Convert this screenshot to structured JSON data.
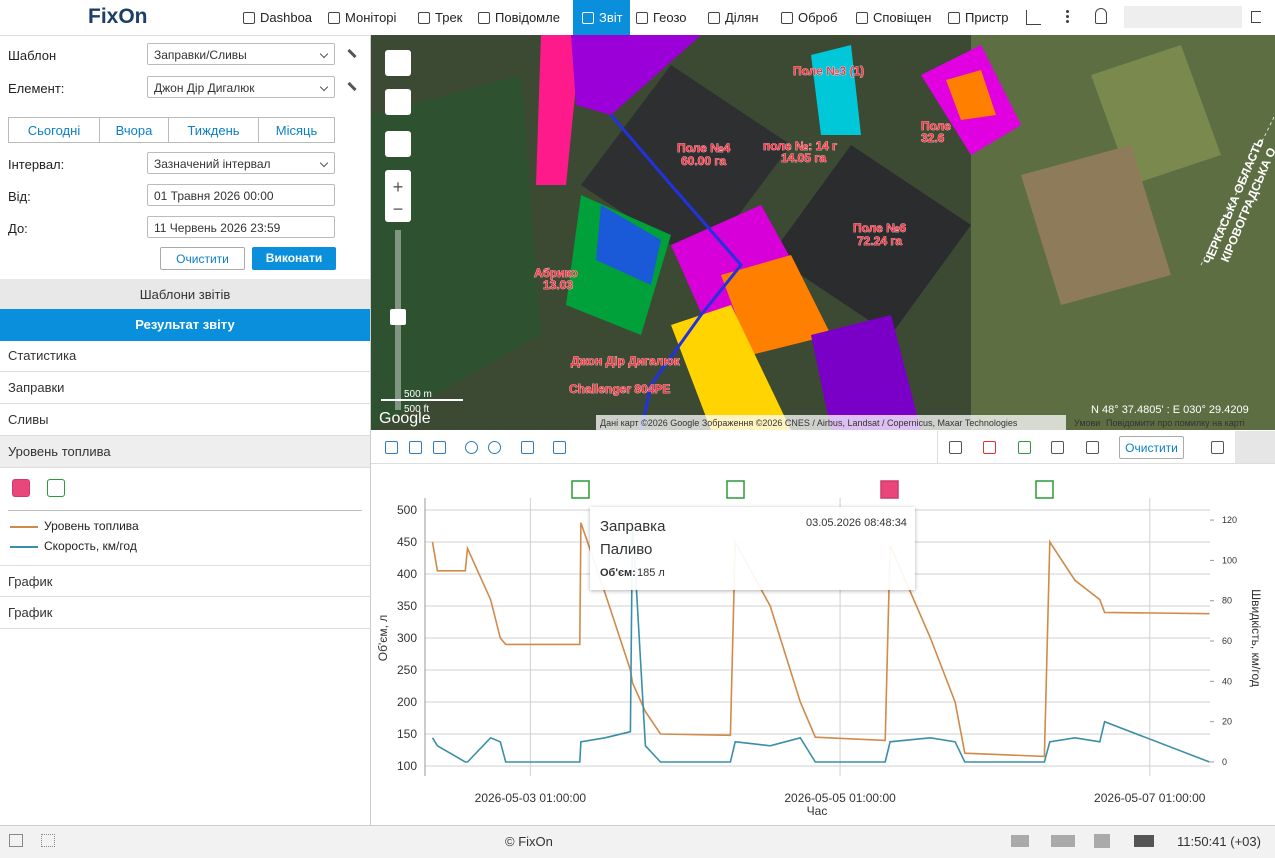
{
  "nav": {
    "logo": "FixOn",
    "tabs": [
      "Dashboa",
      "Моніторі",
      "Трек",
      "Повідомле",
      "Звіт",
      "Геозо",
      "Ділян",
      "Оброб",
      "Сповіщен",
      "Пристр"
    ]
  },
  "sidebar": {
    "template_label": "Шаблон",
    "template_value": "Заправки/Сливы",
    "element_label": "Елемент:",
    "element_value": "Джон Дір  Дигалюк",
    "periods": [
      "Сьогодні",
      "Вчора",
      "Тиждень",
      "Місяць"
    ],
    "interval_label": "Інтервал:",
    "interval_value": "Зазначений інтервал",
    "from_label": "Від:",
    "from_value": "01 Травня 2026 00:00",
    "to_label": "До:",
    "to_value": "11 Червень 2026 23:59",
    "clear": "Очистити",
    "run": "Виконати",
    "templates_header": "Шаблони звітів",
    "result_header": "Результат звіту",
    "items": [
      "Статистика",
      "Заправки",
      "Сливы",
      "Уровень топлива"
    ],
    "charts": [
      "График",
      "График"
    ]
  },
  "map": {
    "labels": [
      "Поле №4",
      "60.00 га",
      "Поле №6",
      "72.24 га",
      "поле №: 14 г",
      "14.05 га",
      "Поле №3 (1)",
      "Абрико",
      "13.03",
      "Challenger 804PE",
      "Джон Дір Дигалюк",
      "Поле",
      "32.6",
      "ЧЕРКАСЬКА ОБЛАСТЬ",
      "КІРОВОГРАДСЬКА О"
    ],
    "scale": [
      "500 m",
      "500 ft"
    ],
    "google": "Google",
    "attribution": "Дані карт ©2026 Google Зображення ©2026 CNES / Airbus, Landsat / Copernicus, Maxar Technologies",
    "terms": "Умови",
    "report": "Повідомити про помилку на карті",
    "coords": "N 48° 37.4805' : E 030° 29.4209"
  },
  "toolbar": {
    "clear": "Очистити"
  },
  "chart_data": {
    "type": "line",
    "xlabel": "Час",
    "ylabel": "Об'єм, л",
    "y2label": "Швидкість, км/год",
    "x": [
      "2026-05-02 09:50:00",
      "2026-05-02 10:35:00",
      "2026-05-02 14:55:00",
      "2026-05-02 15:15:00",
      "2026-05-02 18:50:00",
      "2026-05-02 20:20:00",
      "2026-05-02 21:10:00",
      "2026-05-03 08:40:00",
      "2026-05-03 08:50:00",
      "2026-05-03 12:35:00",
      "2026-05-03 16:30:00",
      "2026-05-03 16:50:00",
      "2026-05-03 18:50:00",
      "2026-05-03 21:10:00",
      "2026-05-04 08:00:00",
      "2026-05-04 08:45:00",
      "2026-05-04 14:10:00",
      "2026-05-04 18:50:00",
      "2026-05-04 21:10:00",
      "2026-05-05 08:00:00",
      "2026-05-05 08:45:00",
      "2026-05-05 15:00:00",
      "2026-05-05 18:50:00",
      "2026-05-05 20:20:00",
      "2026-05-06 08:40:00",
      "2026-05-06 09:30:00",
      "2026-05-06 13:25:00",
      "2026-05-06 17:15:00",
      "2026-05-06 18:00:00",
      "2026-05-07 10:15:00"
    ],
    "series": [
      {
        "name": "Уровень топлива",
        "color": "#d08a4a",
        "values": [
          450,
          405,
          405,
          440,
          360,
          300,
          290,
          290,
          480,
          370,
          250,
          230,
          185,
          150,
          148,
          450,
          350,
          200,
          145,
          140,
          445,
          300,
          200,
          120,
          115,
          450,
          390,
          360,
          340,
          338
        ]
      },
      {
        "name": "Скорость, км/год",
        "color": "#3a8fa8",
        "axis": "y2",
        "values": [
          12,
          8,
          0,
          0,
          12,
          10,
          0,
          0,
          10,
          12,
          15,
          120,
          8,
          0,
          0,
          10,
          8,
          12,
          0,
          0,
          10,
          12,
          10,
          0,
          0,
          10,
          12,
          10,
          20,
          0
        ]
      }
    ],
    "xlim": [
      "2026-05-02 08:40:00",
      "2026-05-07 10:20:00"
    ],
    "xticks": [
      "2026-05-03 01:00:00",
      "2026-05-05 01:00:00",
      "2026-05-07 01:00:00"
    ],
    "ylim": [
      100,
      500
    ],
    "yticks": [
      100,
      150,
      200,
      250,
      300,
      350,
      400,
      450,
      500
    ],
    "y2lim": [
      -2,
      125
    ],
    "y2ticks": [
      0,
      20,
      40,
      60,
      80,
      100,
      120
    ],
    "grid": true
  },
  "tooltip": {
    "title": "Заправка",
    "subtitle": "Паливо",
    "volume_label": "Об'єм:",
    "volume_value": "185 л",
    "time": "03.05.2026 08:48:34"
  },
  "footer": {
    "copyright": "© FixOn",
    "clock": "11:50:41 (+03)"
  }
}
